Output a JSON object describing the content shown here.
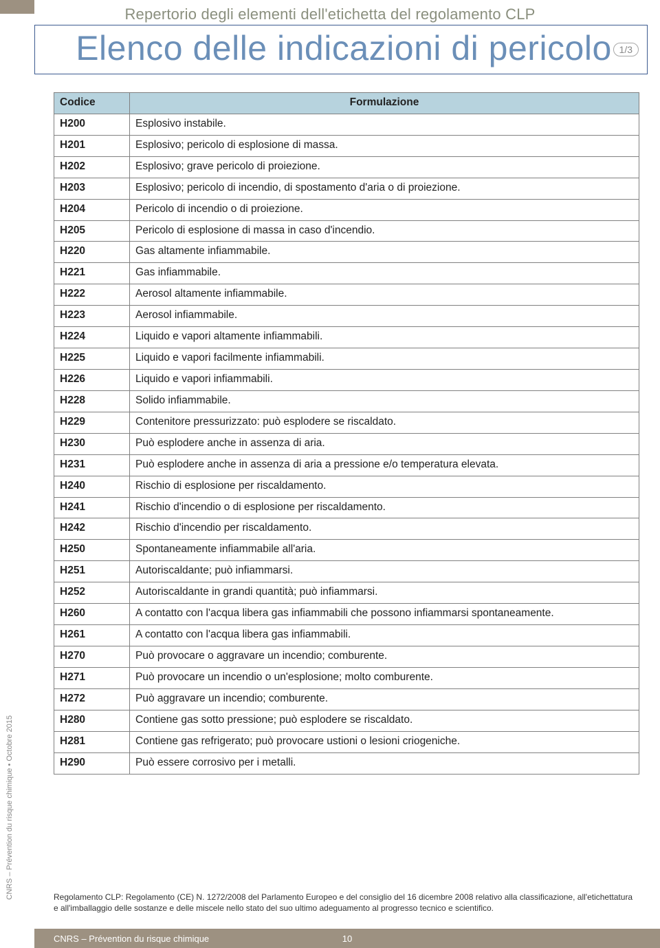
{
  "pretitle": "Repertorio degli elementi dell'etichetta del regolamento CLP",
  "title": "Elenco delle indicazioni di pericolo",
  "page_badge": "1/3",
  "table": {
    "columns": [
      "Codice",
      "Formulazione"
    ],
    "rows": [
      [
        "H200",
        "Esplosivo instabile."
      ],
      [
        "H201",
        "Esplosivo; pericolo di esplosione di massa."
      ],
      [
        "H202",
        "Esplosivo; grave pericolo di proiezione."
      ],
      [
        "H203",
        "Esplosivo; pericolo di incendio, di spostamento d'aria o di proiezione."
      ],
      [
        "H204",
        "Pericolo di incendio o di proiezione."
      ],
      [
        "H205",
        "Pericolo di esplosione di massa in caso d'incendio."
      ],
      [
        "H220",
        "Gas altamente infiammabile."
      ],
      [
        "H221",
        "Gas infiammabile."
      ],
      [
        "H222",
        "Aerosol altamente infiammabile."
      ],
      [
        "H223",
        "Aerosol infiammabile."
      ],
      [
        "H224",
        "Liquido e vapori altamente infiammabili."
      ],
      [
        "H225",
        "Liquido e vapori facilmente infiammabili."
      ],
      [
        "H226",
        "Liquido e vapori infiammabili."
      ],
      [
        "H228",
        "Solido infiammabile."
      ],
      [
        "H229",
        "Contenitore pressurizzato: può esplodere se riscaldato."
      ],
      [
        "H230",
        "Può esplodere anche in assenza di aria."
      ],
      [
        "H231",
        "Può esplodere anche in assenza di aria a pressione e/o temperatura elevata."
      ],
      [
        "H240",
        "Rischio di esplosione per riscaldamento."
      ],
      [
        "H241",
        "Rischio d'incendio o di esplosione per riscaldamento."
      ],
      [
        "H242",
        "Rischio d'incendio per riscaldamento."
      ],
      [
        "H250",
        "Spontaneamente infiammabile all'aria."
      ],
      [
        "H251",
        "Autoriscaldante; può infiammarsi."
      ],
      [
        "H252",
        "Autoriscaldante in grandi quantità; può infiammarsi."
      ],
      [
        "H260",
        "A contatto con l'acqua libera gas infiammabili che possono infiammarsi spontaneamente."
      ],
      [
        "H261",
        "A contatto con l'acqua libera gas infiammabili."
      ],
      [
        "H270",
        "Può provocare o aggravare un incendio; comburente."
      ],
      [
        "H271",
        "Può provocare un incendio o un'esplosione; molto comburente."
      ],
      [
        "H272",
        "Può aggravare un incendio; comburente."
      ],
      [
        "H280",
        "Contiene gas sotto pressione; può esplodere se riscaldato."
      ],
      [
        "H281",
        "Contiene gas refrigerato; può provocare ustioni o lesioni criogeniche."
      ],
      [
        "H290",
        "Può essere corrosivo per i metalli."
      ]
    ]
  },
  "side_text": "CNRS – Prévention du risque chimique • Octobre 2015",
  "footnote": "Regolamento CLP: Regolamento (CE) N. 1272/2008 del Parlamento Europeo e del consiglio del 16 dicembre 2008 relativo alla classificazione, all'etichettatura e all'imballaggio delle sostanze e delle miscele nello stato del suo ultimo adeguamento al progresso tecnico e scientifico.",
  "footer_text": "CNRS – Prévention du risque chimique",
  "footer_page": "10",
  "colors": {
    "title_color": "#6b8fb8",
    "title_border": "#3b5a8f",
    "pretitle_color": "#8a8f7e",
    "th_bg": "#b7d3de",
    "border": "#808080",
    "footer_bg": "#9d9181",
    "badge_border": "#a7a7a7"
  }
}
